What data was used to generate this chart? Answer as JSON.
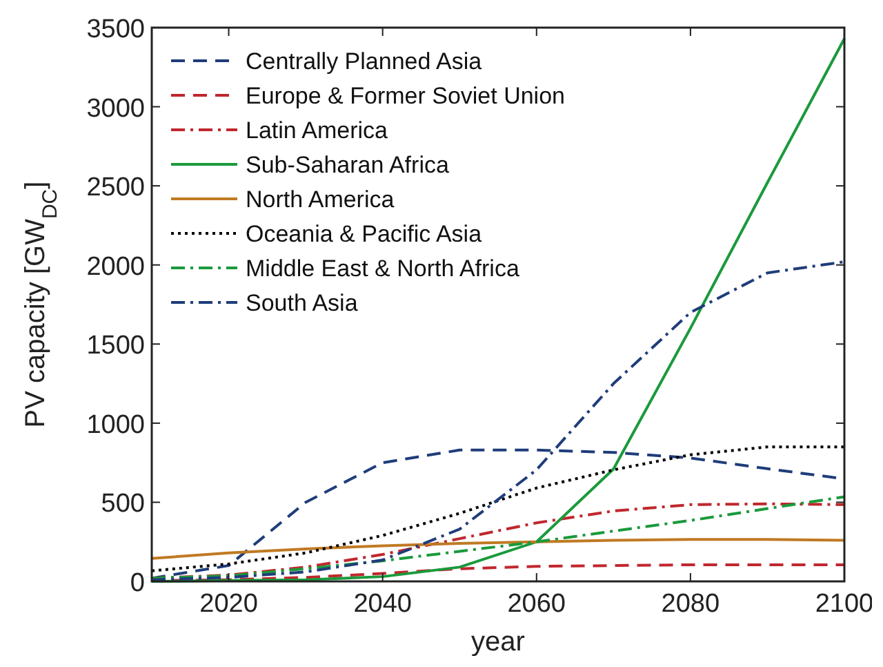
{
  "chart_data": {
    "type": "line",
    "xlabel": "year",
    "ylabel": "PV capacity [GW$_{DC}$]",
    "x": [
      2010,
      2020,
      2030,
      2040,
      2050,
      2060,
      2070,
      2080,
      2090,
      2100
    ],
    "xlim": [
      2010,
      2100
    ],
    "xticks": [
      2020,
      2040,
      2060,
      2080,
      2100
    ],
    "ylim": [
      0,
      3500
    ],
    "yticks": [
      0,
      500,
      1000,
      1500,
      2000,
      2500,
      3000,
      3500
    ],
    "grid": false,
    "legend": "top left",
    "marker": "none",
    "series": [
      {
        "name": "Centrally Planned Asia",
        "color": "#1f3d7a",
        "line_style": "dashed",
        "values": [
          20,
          100,
          500,
          750,
          830,
          830,
          815,
          780,
          712,
          648
        ]
      },
      {
        "name": "Europe & Former Soviet Union",
        "color": "#c0272d",
        "line_style": "dashed",
        "values": [
          5,
          10,
          25,
          50,
          80,
          95,
          100,
          105,
          105,
          105
        ]
      },
      {
        "name": "Latin America",
        "color": "#c0272d",
        "line_style": "dashdot",
        "values": [
          20,
          40,
          90,
          170,
          270,
          370,
          445,
          485,
          490,
          485
        ]
      },
      {
        "name": "Sub-Saharan Africa",
        "color": "#1a9a3c",
        "line_style": "solid",
        "values": [
          0,
          5,
          10,
          30,
          90,
          250,
          710,
          1600,
          2520,
          3430
        ]
      },
      {
        "name": "North America",
        "color": "#c07a23",
        "line_style": "solid",
        "values": [
          145,
          180,
          205,
          225,
          240,
          250,
          260,
          265,
          265,
          260
        ]
      },
      {
        "name": "Oceania & Pacific Asia",
        "color": "#000000",
        "line_style": "dotted",
        "values": [
          67,
          110,
          180,
          290,
          430,
          590,
          705,
          800,
          850,
          850
        ]
      },
      {
        "name": "Middle East & North Africa",
        "color": "#1a9a3c",
        "line_style": "dashdot",
        "values": [
          20,
          35,
          80,
          130,
          190,
          250,
          318,
          385,
          460,
          535
        ]
      },
      {
        "name": "South Asia",
        "color": "#1f3d7a",
        "line_style": "dashdot",
        "values": [
          10,
          25,
          60,
          135,
          330,
          705,
          1250,
          1700,
          1950,
          2020
        ]
      }
    ]
  }
}
